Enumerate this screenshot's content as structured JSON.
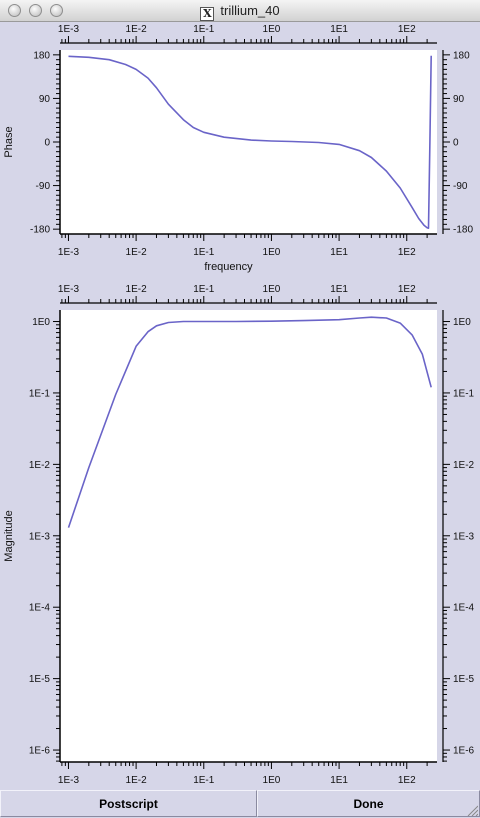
{
  "window": {
    "title": "trillium_40"
  },
  "buttons": {
    "postscript": "Postscript",
    "done": "Done"
  },
  "chart_data": [
    {
      "type": "line",
      "ylabel": "Phase",
      "xlabel": "frequency",
      "xscale": "log",
      "xlim": [
        0.00075,
        280
      ],
      "ylim": [
        -190,
        190
      ],
      "x_tick_labels": [
        "1E-3",
        "1E-2",
        "1E-1",
        "1E0",
        "1E1",
        "1E2"
      ],
      "y_tick_labels": [
        "180",
        "90",
        "0",
        "-90",
        "-180"
      ],
      "line_color": "#6a64c8",
      "series": [
        {
          "x": [
            0.001,
            0.002,
            0.004,
            0.007,
            0.01,
            0.015,
            0.02,
            0.03,
            0.05,
            0.07,
            0.1,
            0.2,
            0.5,
            1,
            2,
            5,
            10,
            20,
            30,
            50,
            80,
            120,
            150,
            180,
            200,
            210,
            220,
            230
          ],
          "y": [
            177,
            175,
            170,
            160,
            150,
            132,
            112,
            78,
            46,
            30,
            20,
            10,
            4,
            2,
            1,
            -1,
            -5,
            -18,
            -32,
            -60,
            -95,
            -135,
            -158,
            -172,
            -177,
            -178,
            0,
            178
          ]
        }
      ]
    },
    {
      "type": "line",
      "ylabel": "Magnitude",
      "xscale": "log",
      "yscale": "log",
      "xlim": [
        0.00075,
        280
      ],
      "ylim": [
        6.8e-07,
        1.45
      ],
      "x_tick_labels": [
        "1E-3",
        "1E-2",
        "1E-1",
        "1E0",
        "1E1",
        "1E2"
      ],
      "y_tick_labels": [
        "1E0",
        "1E-1",
        "1E-2",
        "1E-3",
        "1E-4",
        "1E-5",
        "1E-6"
      ],
      "line_color": "#6a64c8",
      "series": [
        {
          "x": [
            0.001,
            0.002,
            0.005,
            0.01,
            0.015,
            0.02,
            0.03,
            0.05,
            0.1,
            0.3,
            1,
            3,
            10,
            20,
            30,
            50,
            80,
            120,
            170,
            230
          ],
          "y": [
            0.0013,
            0.009,
            0.095,
            0.45,
            0.72,
            0.87,
            0.97,
            1.0,
            1.0,
            1.0,
            1.01,
            1.03,
            1.06,
            1.12,
            1.15,
            1.12,
            0.95,
            0.65,
            0.35,
            0.12
          ]
        }
      ]
    }
  ]
}
